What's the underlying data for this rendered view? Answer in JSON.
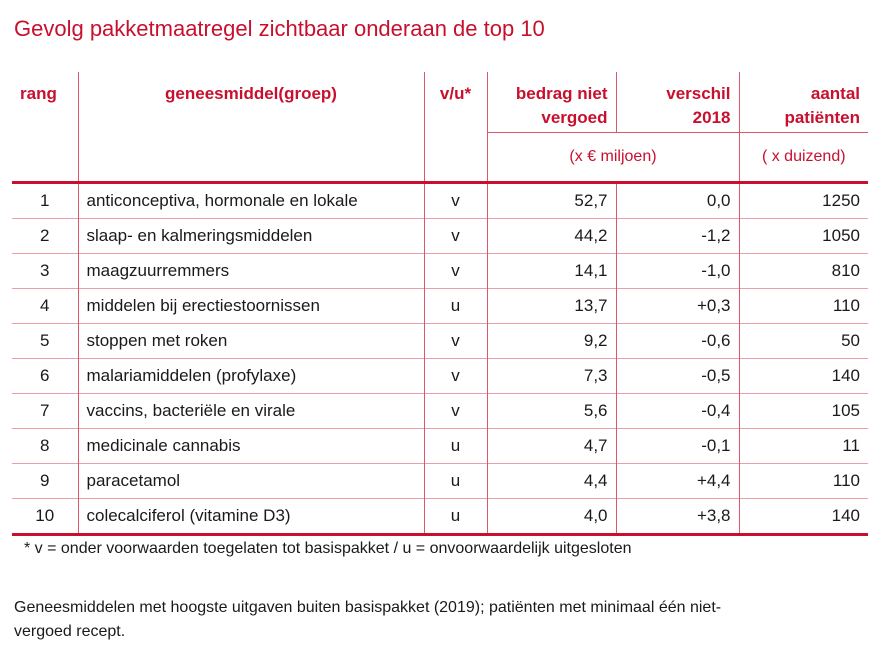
{
  "title": "Gevolg pakketmaatregel zichtbaar onderaan de top 10",
  "headers": {
    "rang": "rang",
    "middel": "geneesmiddel(groep)",
    "vu": "v/u*",
    "bedrag1": "bedrag niet",
    "bedrag2": "vergoed",
    "verschil1": "verschil",
    "verschil2": "2018",
    "aantal1": "aantal",
    "aantal2": "patiënten",
    "unit_money": "(x  € miljoen)",
    "unit_count": "( x duizend)"
  },
  "rows": [
    {
      "rang": "1",
      "middel": "anticonceptiva, hormonale en lokale",
      "vu": "v",
      "bedrag": "52,7",
      "verschil": "0,0",
      "aantal": "1250"
    },
    {
      "rang": "2",
      "middel": "slaap- en kalmeringsmiddelen",
      "vu": "v",
      "bedrag": "44,2",
      "verschil": "-1,2",
      "aantal": "1050"
    },
    {
      "rang": "3",
      "middel": "maagzuurremmers",
      "vu": "v",
      "bedrag": "14,1",
      "verschil": "-1,0",
      "aantal": "810"
    },
    {
      "rang": "4",
      "middel": "middelen bij erectiestoornissen",
      "vu": "u",
      "bedrag": "13,7",
      "verschil": "+0,3",
      "aantal": "110"
    },
    {
      "rang": "5",
      "middel": "stoppen met roken",
      "vu": "v",
      "bedrag": "9,2",
      "verschil": "-0,6",
      "aantal": "50"
    },
    {
      "rang": "6",
      "middel": "malariamiddelen (profylaxe)",
      "vu": "v",
      "bedrag": "7,3",
      "verschil": "-0,5",
      "aantal": "140"
    },
    {
      "rang": "7",
      "middel": "vaccins, bacteriële en virale",
      "vu": "v",
      "bedrag": "5,6",
      "verschil": "-0,4",
      "aantal": "105"
    },
    {
      "rang": "8",
      "middel": "medicinale cannabis",
      "vu": "u",
      "bedrag": "4,7",
      "verschil": "-0,1",
      "aantal": "11"
    },
    {
      "rang": "9",
      "middel": "paracetamol",
      "vu": "u",
      "bedrag": "4,4",
      "verschil": "+4,4",
      "aantal": "110"
    },
    {
      "rang": "10",
      "middel": "colecalciferol (vitamine D3)",
      "vu": "u",
      "bedrag": "4,0",
      "verschil": "+3,8",
      "aantal": "140"
    }
  ],
  "footnote": "* v = onder voorwaarden toegelaten tot basispakket / u = onvoorwaardelijk uitgesloten",
  "note": "Geneesmiddelen met hoogste uitgaven buiten basispakket (2019); patiënten met minimaal één niet-vergoed recept."
}
